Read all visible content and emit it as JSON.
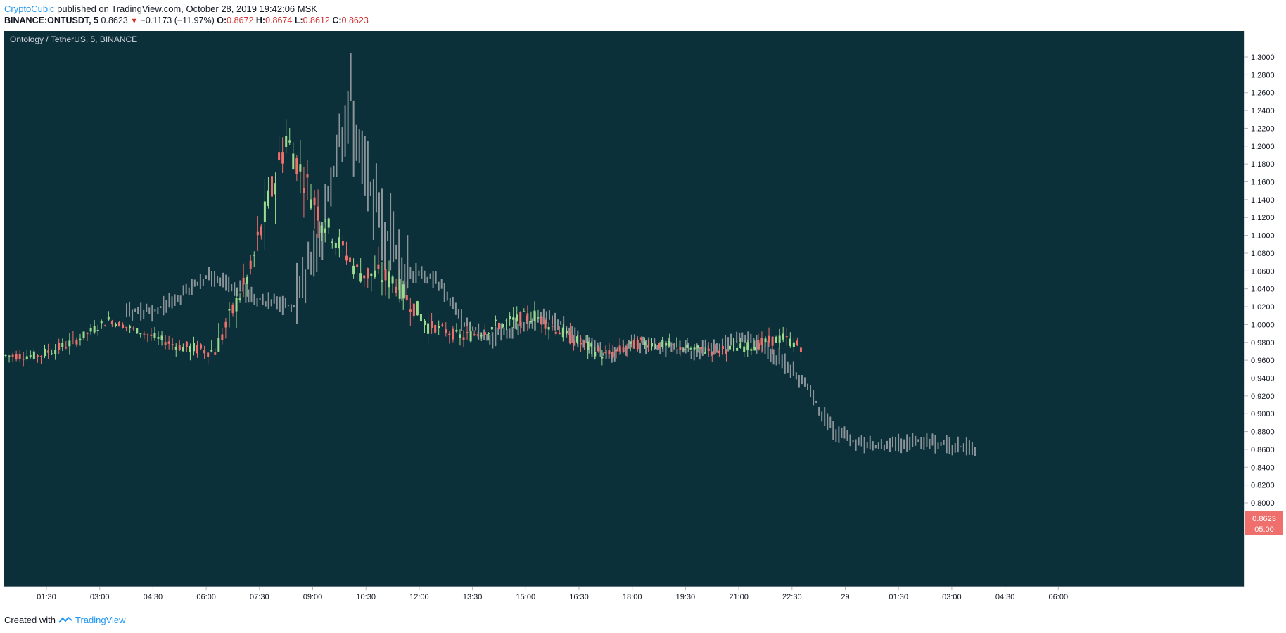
{
  "header": {
    "author": "CryptoCubic",
    "published_text": "published on TradingView.com, October 28, 2019 19:42:06 MSK",
    "symbol": "BINANCE:ONTUSDT, 5",
    "last": "0.8623",
    "change": "−0.1173 (−11.97%)",
    "o_label": "O:",
    "o_value": "0.8672",
    "h_label": "H:",
    "h_value": "0.8674",
    "l_label": "L:",
    "l_value": "0.8612",
    "c_label": "C:",
    "c_value": "0.8623"
  },
  "footer": {
    "created_with": "Created with",
    "brand": "TradingView"
  },
  "colors": {
    "background": "#0c3039",
    "up": "#9bdb8e",
    "down": "#ef6f6c",
    "ghost": "#8a9499",
    "price_tag": "#ef6f6c"
  },
  "chart_data": {
    "type": "candlestick",
    "title": "Ontology / TetherUS, 5, BINANCE",
    "y_ticks": [
      "1.3000",
      "1.2800",
      "1.2600",
      "1.2400",
      "1.2200",
      "1.2000",
      "1.1800",
      "1.1600",
      "1.1400",
      "1.1200",
      "1.1000",
      "1.0800",
      "1.0600",
      "1.0400",
      "1.0200",
      "1.0000",
      "0.9800",
      "0.9600",
      "0.9400",
      "0.9200",
      "0.9000",
      "0.8800",
      "0.8600",
      "0.8400",
      "0.8200",
      "0.8000"
    ],
    "ylim": [
      0.8,
      1.3
    ],
    "x_ticks": [
      "01:30",
      "03:00",
      "04:30",
      "06:00",
      "07:30",
      "09:00",
      "10:30",
      "12:00",
      "13:30",
      "15:00",
      "16:30",
      "18:00",
      "19:30",
      "21:00",
      "22:30",
      "29",
      "01:30",
      "03:00",
      "04:30",
      "06:00"
    ],
    "x_range_hours": [
      0,
      30
    ],
    "current_price": "0.8623",
    "countdown": "05:00",
    "series": [
      {
        "name": "candles",
        "hourly_close": [
          0.965,
          0.98,
          1.005,
          0.99,
          0.975,
          0.97,
          1.06,
          1.21,
          1.12,
          1.06,
          1.05,
          1.0,
          0.985,
          1.0,
          1.01,
          0.985,
          0.965,
          0.98,
          0.975,
          0.97,
          0.975,
          0.985,
          0.965,
          0.935,
          0.88,
          0.865,
          0.865,
          0.87,
          0.865,
          0.862
        ],
        "hourly_high": [
          0.99,
          1.01,
          1.02,
          1.0,
          0.99,
          1.02,
          1.1,
          1.24,
          1.2,
          1.1,
          1.08,
          1.05,
          1.01,
          1.03,
          1.04,
          1.02,
          0.99,
          1.0,
          1.0,
          0.99,
          1.0,
          1.01,
          0.99,
          0.97,
          0.91,
          0.885,
          0.88,
          0.895,
          0.88,
          0.87
        ],
        "hourly_low": [
          0.95,
          0.96,
          0.98,
          0.97,
          0.95,
          0.96,
          1.0,
          1.07,
          1.06,
          1.0,
          0.97,
          0.96,
          0.96,
          0.97,
          0.975,
          0.96,
          0.935,
          0.95,
          0.955,
          0.95,
          0.955,
          0.96,
          0.94,
          0.91,
          0.86,
          0.855,
          0.855,
          0.86,
          0.86,
          0.86
        ]
      },
      {
        "name": "ghost-overlay",
        "hourly_close": [
          0.965,
          0.98,
          1.005,
          0.99,
          0.975,
          0.97,
          1.06,
          1.21,
          1.12,
          1.06,
          1.05,
          1.0,
          0.985,
          1.0,
          1.01,
          0.985,
          0.965,
          0.98,
          0.975,
          0.97,
          0.975,
          0.985,
          0.965,
          0.935,
          0.88,
          0.865,
          0.865,
          0.87,
          0.865,
          0.862
        ]
      }
    ]
  }
}
